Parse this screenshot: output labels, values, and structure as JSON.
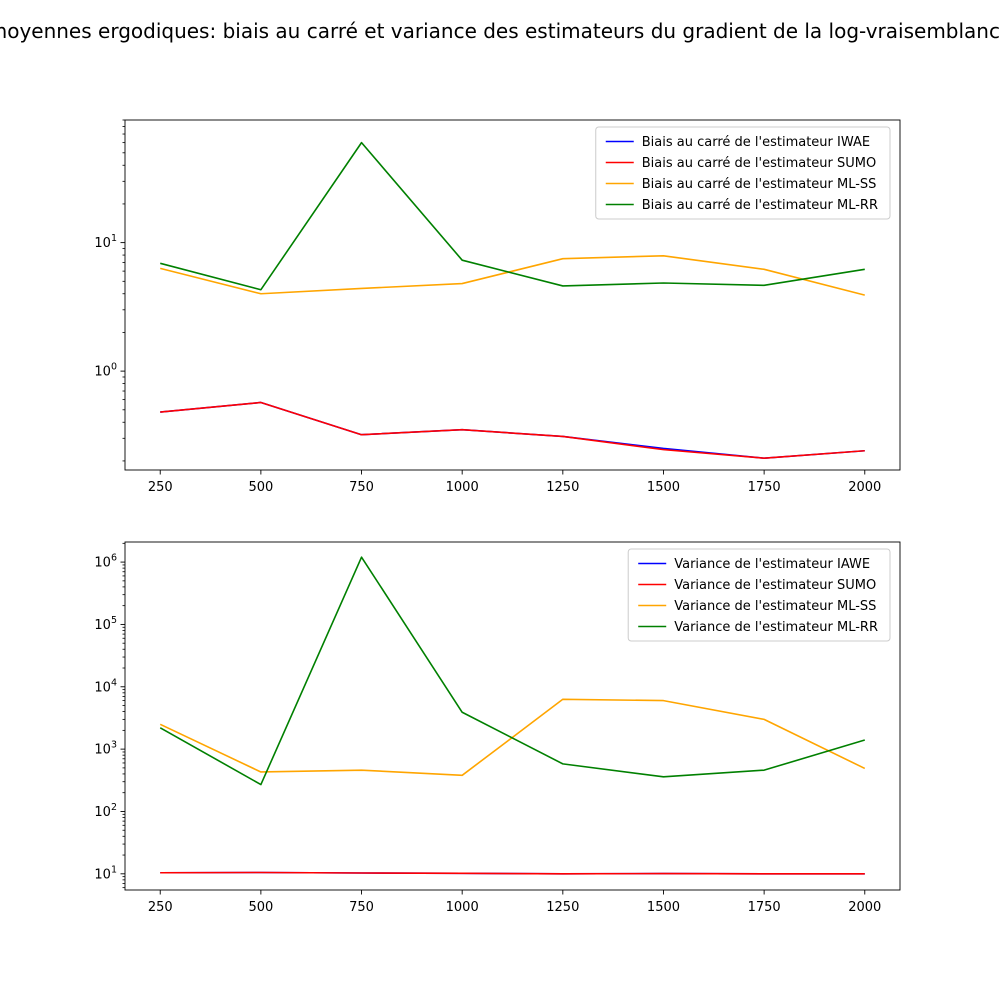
{
  "figure": {
    "suptitle": "moyennes ergodiques: biais au carré et variance des estimateurs du gradient de la log-vraisemblance"
  },
  "chart_data": [
    {
      "type": "line",
      "yscale": "log",
      "x": [
        250,
        500,
        750,
        1000,
        1250,
        1500,
        1750,
        2000
      ],
      "xticks": [
        "250",
        "500",
        "750",
        "1000",
        "1250",
        "1500",
        "1750",
        "2000"
      ],
      "yticks": [
        {
          "value": 1,
          "base": "10",
          "exp": "0"
        },
        {
          "value": 10,
          "base": "10",
          "exp": "1"
        }
      ],
      "ylim": [
        0.17,
        90
      ],
      "xlim": [
        162.5,
        2087.5
      ],
      "legend_loc": "top-right",
      "grid": false,
      "series": [
        {
          "name": "Biais au carré de l'estimateur IWAE",
          "color": "#0000ff",
          "values": [
            0.48,
            0.57,
            0.32,
            0.35,
            0.31,
            0.25,
            0.21,
            0.24
          ]
        },
        {
          "name": "Biais au carré de l'estimateur SUMO",
          "color": "#ff0000",
          "values": [
            0.48,
            0.57,
            0.32,
            0.35,
            0.31,
            0.245,
            0.21,
            0.24
          ]
        },
        {
          "name": "Biais au carré de l'estimateur ML-SS",
          "color": "#ffa500",
          "values": [
            6.3,
            4.0,
            4.4,
            4.8,
            7.5,
            7.9,
            6.2,
            3.9
          ]
        },
        {
          "name": "Biais au carré de l'estimateur ML-RR",
          "color": "#008000",
          "values": [
            6.9,
            4.3,
            60,
            7.3,
            4.6,
            4.85,
            4.65,
            6.2
          ]
        }
      ]
    },
    {
      "type": "line",
      "yscale": "log",
      "x": [
        250,
        500,
        750,
        1000,
        1250,
        1500,
        1750,
        2000
      ],
      "xticks": [
        "250",
        "500",
        "750",
        "1000",
        "1250",
        "1500",
        "1750",
        "2000"
      ],
      "yticks": [
        {
          "value": 10,
          "base": "10",
          "exp": "1"
        },
        {
          "value": 100,
          "base": "10",
          "exp": "2"
        },
        {
          "value": 1000,
          "base": "10",
          "exp": "3"
        },
        {
          "value": 10000,
          "base": "10",
          "exp": "4"
        },
        {
          "value": 100000,
          "base": "10",
          "exp": "5"
        },
        {
          "value": 1000000,
          "base": "10",
          "exp": "6"
        }
      ],
      "ylim": [
        5.5,
        2100000
      ],
      "xlim": [
        162.5,
        2087.5
      ],
      "legend_loc": "top-right",
      "grid": false,
      "series": [
        {
          "name": "Variance de l'estimateur IAWE",
          "color": "#0000ff",
          "values": [
            10.4,
            10.5,
            10.3,
            10.2,
            10.0,
            10.1,
            10.0,
            10.0
          ]
        },
        {
          "name": "Variance de l'estimateur SUMO",
          "color": "#ff0000",
          "values": [
            10.4,
            10.5,
            10.3,
            10.2,
            10.0,
            10.1,
            10.0,
            10.0
          ]
        },
        {
          "name": "Variance de l'estimateur ML-SS",
          "color": "#ffa500",
          "values": [
            2500,
            430,
            460,
            380,
            6300,
            6000,
            3000,
            490
          ]
        },
        {
          "name": "Variance de l'estimateur ML-RR",
          "color": "#008000",
          "values": [
            2200,
            270,
            1200000,
            3900,
            580,
            360,
            460,
            1400
          ]
        }
      ]
    }
  ]
}
